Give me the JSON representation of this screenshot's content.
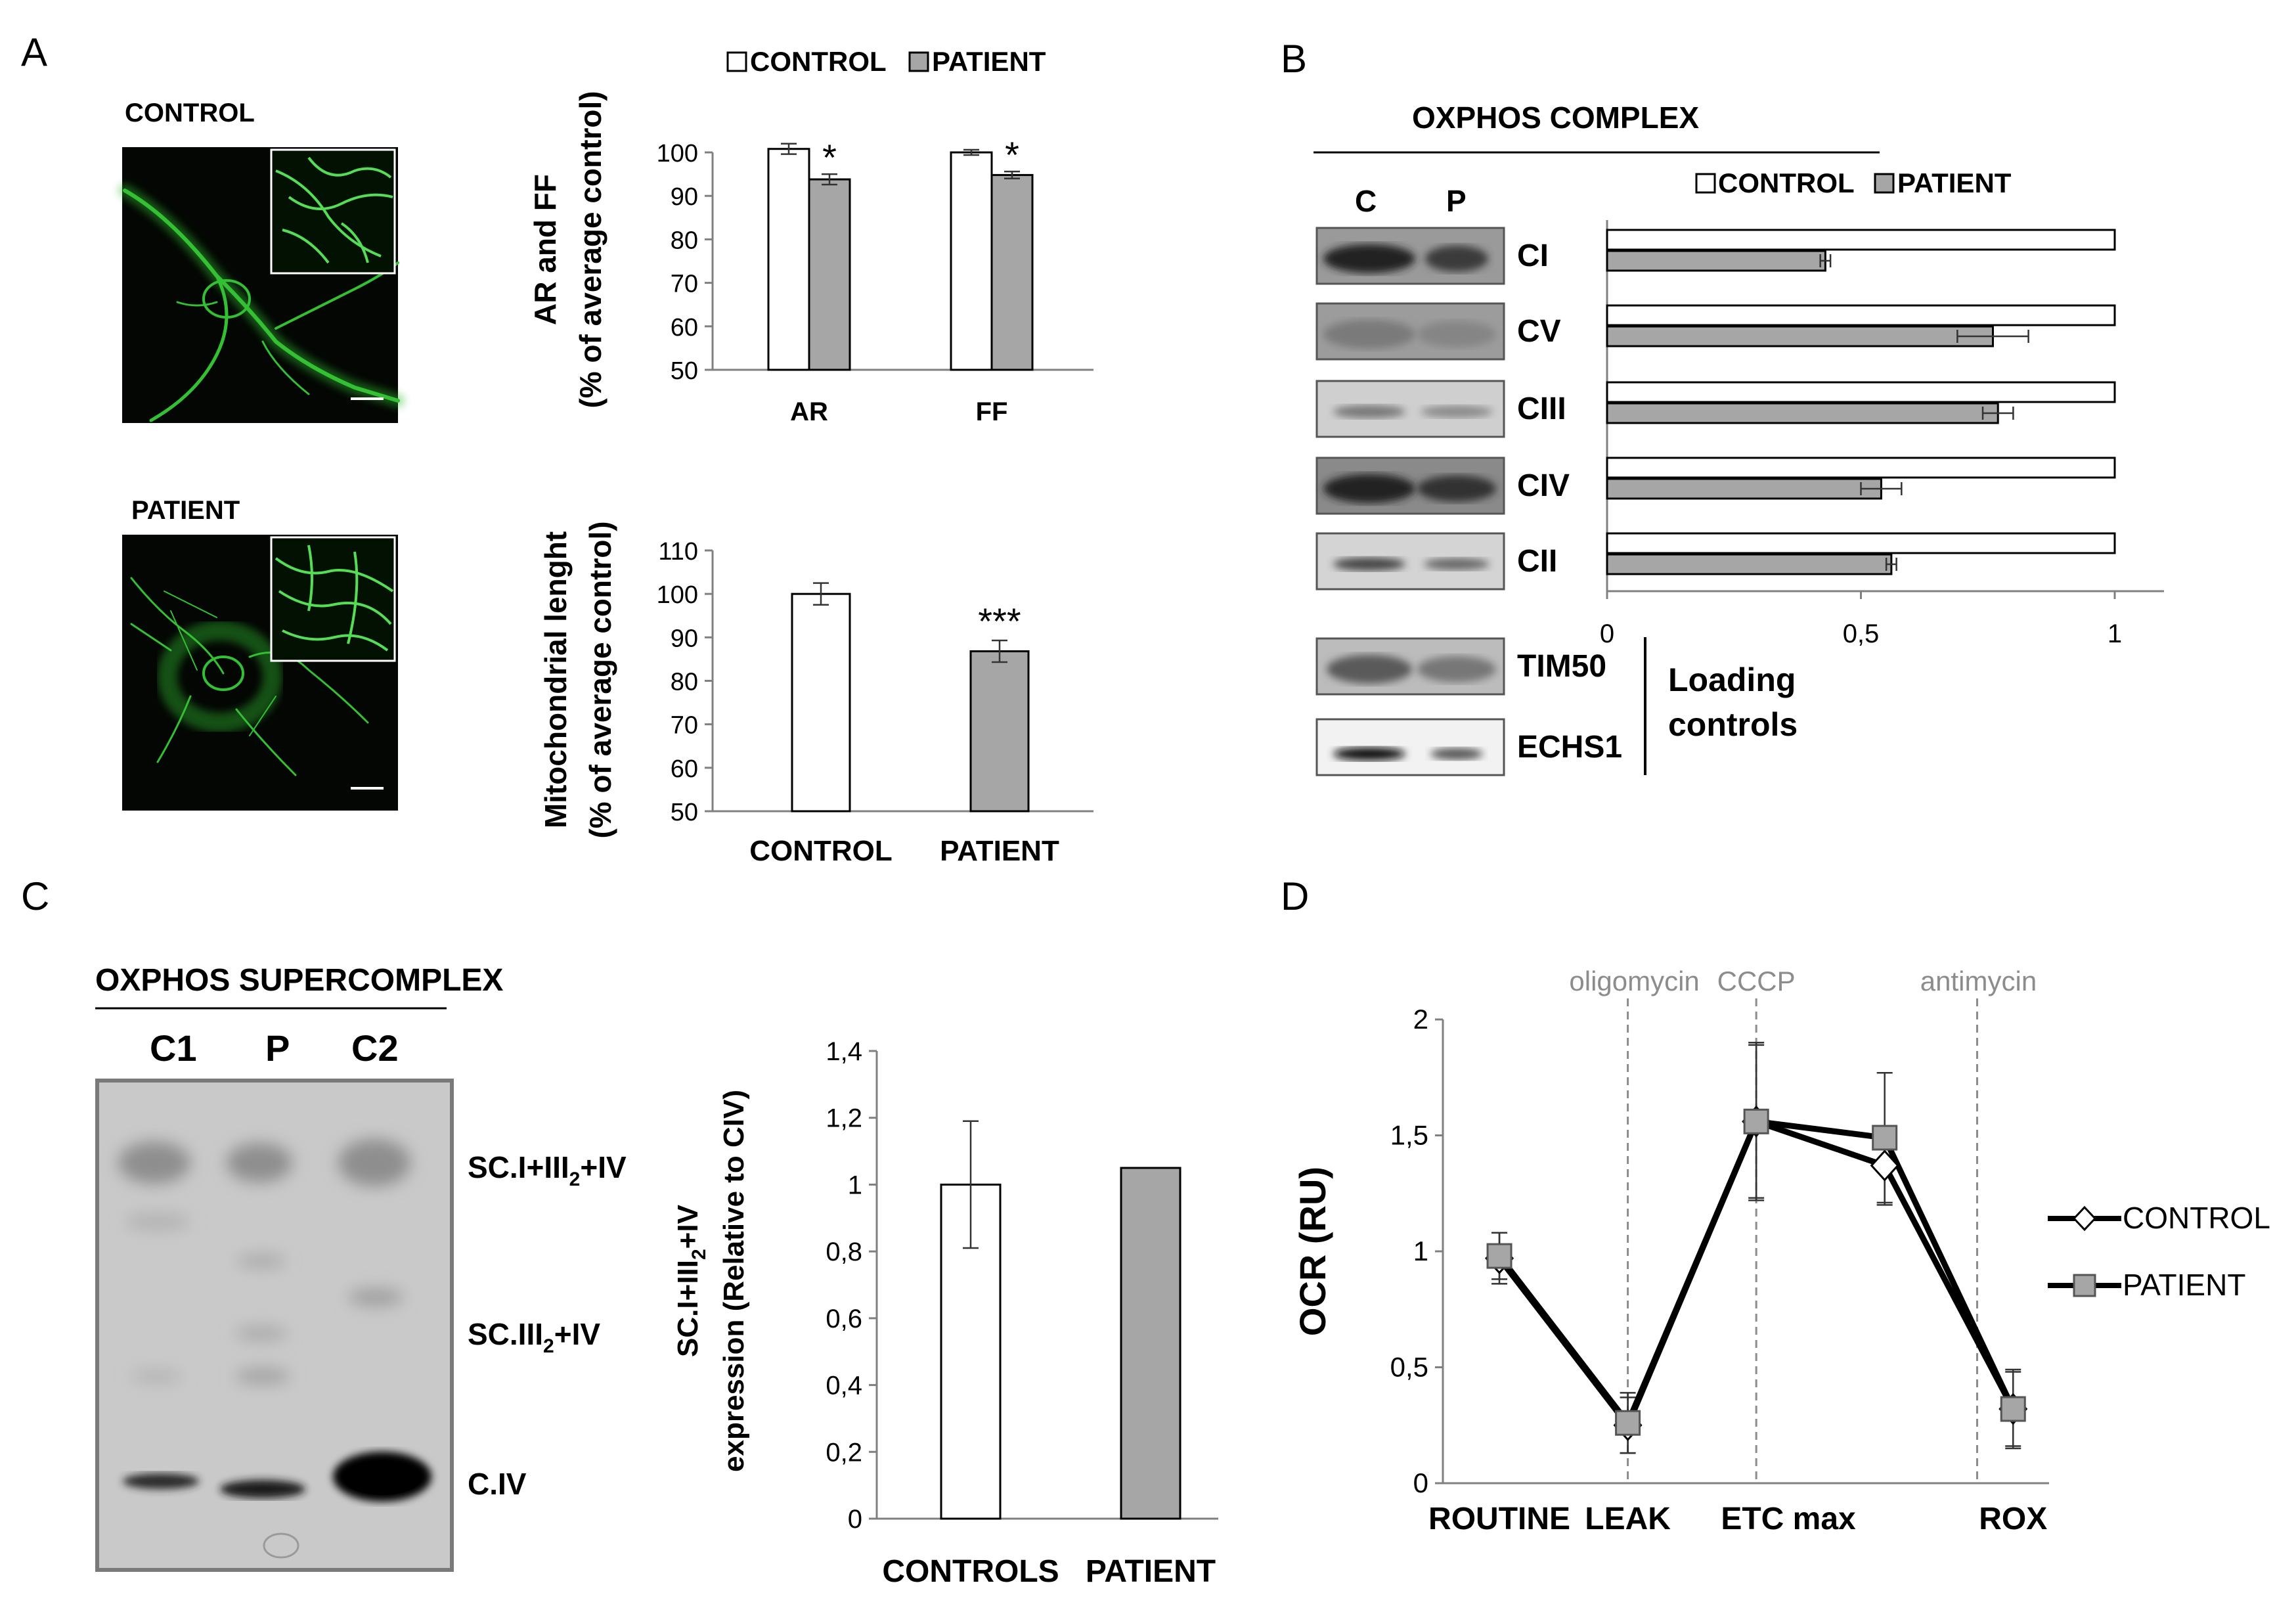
{
  "panels": {
    "A": "A",
    "B": "B",
    "C": "C",
    "D": "D"
  },
  "micro": {
    "control_label": "CONTROL",
    "patient_label": "PATIENT"
  },
  "colors": {
    "control_fill": "#ffffff",
    "patient_fill": "#a6a6a6",
    "axis": "#808080",
    "micro_green": "#39c23c"
  },
  "panelB_labels": {
    "title": "OXPHOS COMPLEX",
    "lane_c": "C",
    "lane_p": "P",
    "bands": [
      "CI",
      "CV",
      "CIII",
      "CIV",
      "CII",
      "TIM50",
      "ECHS1"
    ],
    "loading_1": "Loading",
    "loading_2": "controls"
  },
  "panelC_labels": {
    "title": "OXPHOS SUPERCOMPLEX",
    "lanes": [
      "C1",
      "P",
      "C2"
    ],
    "sc1_base": "SC.I+III",
    "sc1_sub": "2",
    "sc1_tail": "+IV",
    "sc2_base": "SC.III",
    "sc2_sub": "2",
    "sc2_tail": "+IV",
    "civ": "C.IV"
  },
  "chart_data": [
    {
      "id": "A-top",
      "type": "bar",
      "categories": [
        "AR",
        "FF"
      ],
      "series": [
        {
          "name": "CONTROL",
          "values": [
            100.8,
            100.0
          ],
          "errors": [
            1.2,
            0.6
          ]
        },
        {
          "name": "PATIENT",
          "values": [
            93.8,
            94.8
          ],
          "errors": [
            1.2,
            0.8
          ]
        }
      ],
      "annotations": [
        "*",
        "*"
      ],
      "ylabel": "AR and FF",
      "ylabel2": "(% of average control)",
      "ylim": [
        50,
        100
      ],
      "yticks": [
        "50",
        "60",
        "70",
        "80",
        "90",
        "100"
      ],
      "legend": [
        "CONTROL",
        "PATIENT"
      ]
    },
    {
      "id": "A-bottom",
      "type": "bar",
      "categories": [
        "CONTROL",
        "PATIENT"
      ],
      "values": [
        100.0,
        86.8
      ],
      "errors": [
        2.5,
        2.5
      ],
      "annotations": [
        "",
        "***"
      ],
      "ylabel": "Mitochondrial lenght",
      "ylabel2": "(% of average control)",
      "ylim": [
        50,
        110
      ],
      "yticks": [
        "50",
        "60",
        "70",
        "80",
        "90",
        "100",
        "110"
      ]
    },
    {
      "id": "B",
      "type": "bar",
      "orientation": "horizontal",
      "categories": [
        "CI",
        "CV",
        "CIII",
        "CIV",
        "CII"
      ],
      "series": [
        {
          "name": "CONTROL",
          "values": [
            1,
            1,
            1,
            1,
            1
          ]
        },
        {
          "name": "PATIENT",
          "values": [
            0.43,
            0.76,
            0.77,
            0.54,
            0.56
          ],
          "errors": [
            0.01,
            0.07,
            0.03,
            0.04,
            0.01
          ]
        }
      ],
      "xlim": [
        0,
        1.1
      ],
      "xticks": [
        "0",
        "0,5",
        "1"
      ],
      "legend": [
        "CONTROL",
        "PATIENT"
      ]
    },
    {
      "id": "C",
      "type": "bar",
      "categories": [
        "CONTROLS",
        "PATIENT"
      ],
      "values": [
        1.0,
        1.05
      ],
      "errors": [
        0.19,
        0
      ],
      "ylabel_base": "SC.I+III",
      "ylabel_sub": "2",
      "ylabel_tail": "+IV",
      "ylabel2": "expression (Relative to CIV)",
      "ylim": [
        0,
        1.4
      ],
      "yticks": [
        "0",
        "0,2",
        "0,4",
        "0,6",
        "0,8",
        "1",
        "1,2",
        "1,4"
      ]
    },
    {
      "id": "D",
      "type": "line",
      "categories": [
        "ROUTINE",
        "LEAK",
        "ETC max",
        "ROX"
      ],
      "series": [
        {
          "name": "CONTROL",
          "marker": "diamond",
          "x": [
            1,
            2,
            3,
            4,
            5
          ],
          "values": [
            0.97,
            0.25,
            1.56,
            1.37,
            0.32
          ],
          "errors": [
            0.11,
            0.12,
            0.33,
            0.17,
            0.16
          ]
        },
        {
          "name": "PATIENT",
          "marker": "square",
          "x": [
            1,
            2,
            3,
            4,
            5
          ],
          "values": [
            0.98,
            0.26,
            1.56,
            1.49,
            0.32
          ],
          "errors": [
            0.1,
            0.13,
            0.34,
            0.28,
            0.17
          ]
        }
      ],
      "ylabel": "OCR (RU)",
      "ylim": [
        0,
        2
      ],
      "yticks": [
        "0",
        "0,5",
        "1",
        "1,5",
        "2"
      ],
      "vlines": [
        "oligomycin",
        "CCCP",
        "antimycin"
      ]
    }
  ]
}
